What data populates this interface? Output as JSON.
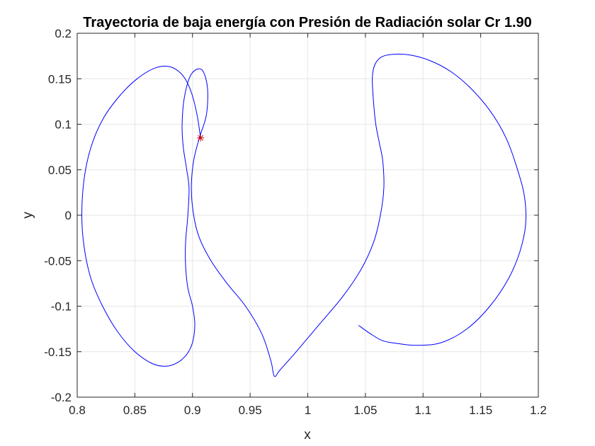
{
  "chart_data": {
    "type": "line",
    "title": "Trayectoria de baja energía con Presión de Radiación solar Cr 1.90",
    "xlabel": "x",
    "ylabel": "y",
    "xlim": [
      0.8,
      1.2
    ],
    "ylim": [
      -0.2,
      0.2
    ],
    "xticks": [
      "0.8",
      "0.85",
      "0.9",
      "0.95",
      "1",
      "1.05",
      "1.1",
      "1.15",
      "1.2"
    ],
    "yticks": [
      "-0.2",
      "-0.15",
      "-0.1",
      "-0.05",
      "0",
      "0.05",
      "0.1",
      "0.15",
      "0.2"
    ],
    "grid": true,
    "series": [
      {
        "color": "#0000ff",
        "x": [
          0.907,
          0.904,
          0.899,
          0.892,
          0.881,
          0.868,
          0.852,
          0.836,
          0.822,
          0.812,
          0.806,
          0.804,
          0.806,
          0.812,
          0.822,
          0.835,
          0.85,
          0.865,
          0.877,
          0.887,
          0.895,
          0.9,
          0.902,
          0.9,
          0.896,
          0.894,
          0.894,
          0.896,
          0.897,
          0.895,
          0.892,
          0.891,
          0.893,
          0.899,
          0.908,
          0.913,
          0.912,
          0.906,
          0.901,
          0.899,
          0.901,
          0.906,
          0.916,
          0.93,
          0.946,
          0.96,
          0.968,
          0.971,
          0.976,
          0.99,
          1.01,
          1.03,
          1.046,
          1.057,
          1.063,
          1.066,
          1.065,
          1.062,
          1.059,
          1.057,
          1.056,
          1.058,
          1.064,
          1.075,
          1.089,
          1.106,
          1.124,
          1.141,
          1.158,
          1.172,
          1.182,
          1.188,
          1.189,
          1.184,
          1.174,
          1.158,
          1.138,
          1.116,
          1.095,
          1.078,
          1.065,
          1.054,
          1.044
        ],
        "y": [
          0.085,
          0.11,
          0.135,
          0.153,
          0.163,
          0.162,
          0.15,
          0.13,
          0.105,
          0.075,
          0.04,
          0.0,
          -0.035,
          -0.07,
          -0.1,
          -0.128,
          -0.15,
          -0.163,
          -0.166,
          -0.162,
          -0.153,
          -0.14,
          -0.12,
          -0.1,
          -0.08,
          -0.055,
          -0.03,
          0.0,
          0.03,
          0.05,
          0.075,
          0.1,
          0.13,
          0.155,
          0.16,
          0.14,
          0.11,
          0.085,
          0.06,
          0.03,
          0.0,
          -0.025,
          -0.05,
          -0.075,
          -0.1,
          -0.13,
          -0.16,
          -0.177,
          -0.17,
          -0.15,
          -0.12,
          -0.09,
          -0.06,
          -0.03,
          0.0,
          0.03,
          0.06,
          0.08,
          0.1,
          0.125,
          0.15,
          0.165,
          0.174,
          0.177,
          0.176,
          0.17,
          0.158,
          0.14,
          0.115,
          0.085,
          0.05,
          0.02,
          -0.01,
          -0.04,
          -0.07,
          -0.1,
          -0.125,
          -0.14,
          -0.143,
          -0.141,
          -0.138,
          -0.13,
          -0.121
        ]
      }
    ],
    "marker": {
      "x": 0.907,
      "y": 0.085,
      "symbol": "*",
      "color": "#cc0000"
    }
  }
}
